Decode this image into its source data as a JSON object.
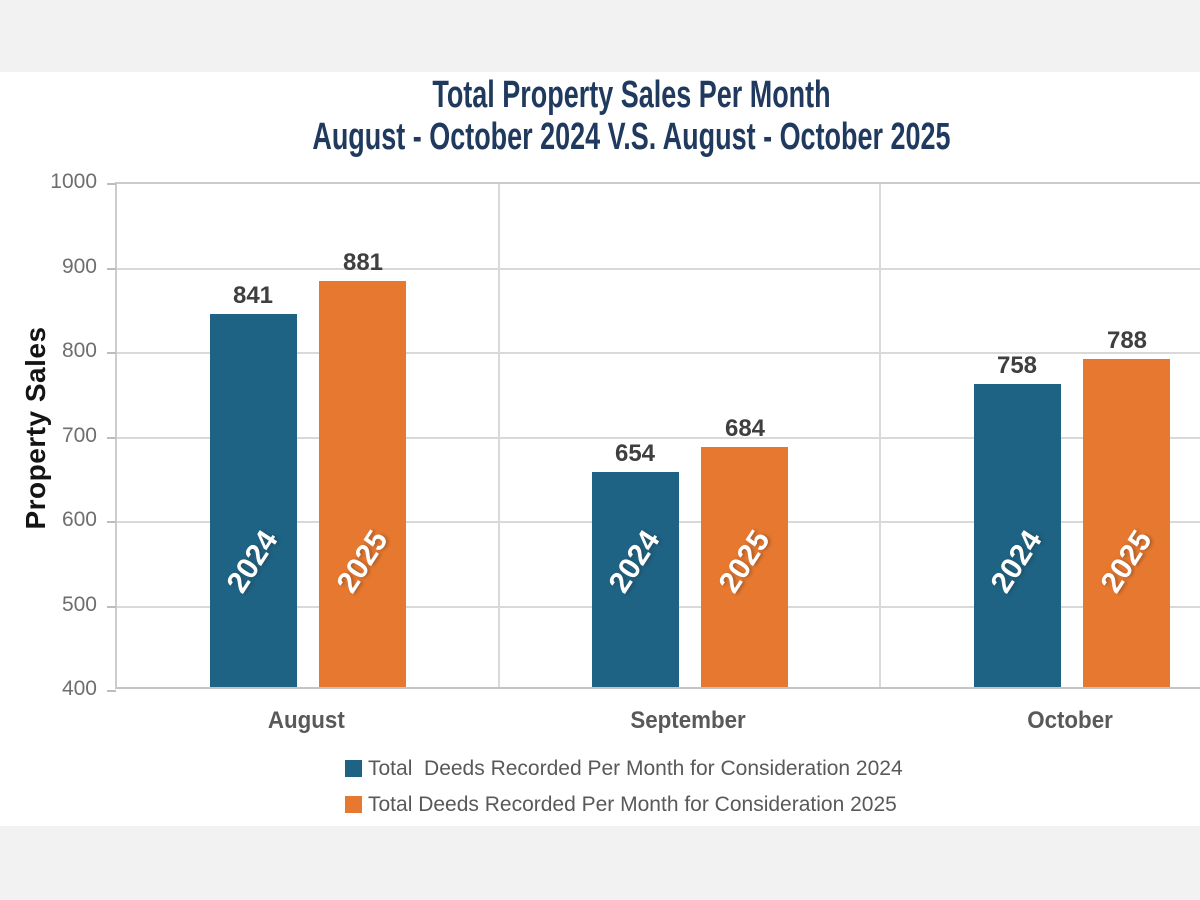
{
  "title": {
    "line1": "Total Property Sales Per Month",
    "line2": "August - October 2024 V.S. August - October 2025",
    "color": "#1F3A5E"
  },
  "y_axis": {
    "label": "Property Sales",
    "ticks": [
      "1000",
      "900",
      "800",
      "700",
      "600",
      "500",
      "400"
    ]
  },
  "legend": {
    "items": [
      {
        "label": "Total  Deeds Recorded Per Month for Consideration 2024",
        "color": "#1E6384"
      },
      {
        "label": "Total Deeds Recorded Per Month for Consideration 2025",
        "color": "#E7782F"
      }
    ]
  },
  "chart_data": {
    "type": "bar",
    "title": "Total Property Sales Per Month August - October 2024 V.S. August - October 2025",
    "categories": [
      "August",
      "September",
      "October"
    ],
    "series": [
      {
        "name": "Total  Deeds Recorded Per Month for Consideration 2024",
        "short_name": "2024",
        "color": "#1E6384",
        "values": [
          841,
          654,
          758
        ]
      },
      {
        "name": "Total Deeds Recorded Per Month for Consideration 2025",
        "short_name": "2025",
        "color": "#E7782F",
        "values": [
          881,
          684,
          788
        ]
      }
    ],
    "xlabel": "",
    "ylabel": "Property Sales",
    "ylim": [
      400,
      1000
    ],
    "ytick_interval": 100,
    "grid": true,
    "legend_position": "bottom",
    "bar_value_labels": true,
    "in_bar_labels": [
      "2024",
      "2025"
    ]
  }
}
